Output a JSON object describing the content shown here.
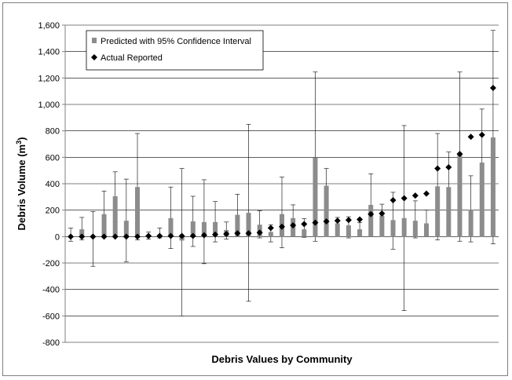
{
  "chart_data": {
    "type": "bar",
    "title": "",
    "xlabel": "Debris Values by Community",
    "ylabel_main": "Debris Volume (m",
    "ylabel_sup": "3",
    "ylabel_close": ")",
    "ylim": [
      -800,
      1600
    ],
    "yticks": [
      -800,
      -600,
      -400,
      -200,
      0,
      200,
      400,
      600,
      800,
      1000,
      1200,
      1400,
      1600
    ],
    "ytick_labels": [
      "-800",
      "-600",
      "-400",
      "-200",
      "0",
      "200",
      "400",
      "600",
      "800",
      "1,000",
      "1,200",
      "1,400",
      "1,600"
    ],
    "grid": true,
    "legend_position": "top-left",
    "series": [
      {
        "name": "Predicted with 95% Confidence Interval",
        "kind": "bar_with_error",
        "color": "#8c8c8c",
        "values": [
          5,
          55,
          0,
          170,
          305,
          120,
          375,
          0,
          0,
          140,
          -30,
          115,
          110,
          110,
          50,
          165,
          180,
          90,
          35,
          170,
          140,
          55,
          600,
          385,
          100,
          85,
          55,
          240,
          160,
          125,
          140,
          120,
          100,
          380,
          375,
          620,
          200,
          560,
          750
        ],
        "lower": [
          -35,
          -25,
          -225,
          0,
          110,
          -190,
          -25,
          -20,
          -10,
          -90,
          -600,
          -75,
          -205,
          -40,
          -20,
          0,
          -490,
          -10,
          -40,
          -85,
          0,
          -5,
          -35,
          250,
          55,
          -10,
          0,
          0,
          75,
          -95,
          -560,
          -10,
          0,
          -25,
          90,
          -35,
          -40,
          140,
          -55
        ],
        "upper": [
          65,
          145,
          190,
          345,
          490,
          435,
          780,
          35,
          65,
          375,
          515,
          305,
          430,
          265,
          110,
          320,
          850,
          195,
          90,
          450,
          240,
          135,
          1245,
          515,
          145,
          150,
          105,
          475,
          245,
          335,
          840,
          270,
          200,
          780,
          640,
          1245,
          460,
          965,
          1560
        ]
      },
      {
        "name": "Actual Reported",
        "kind": "marker",
        "color": "#000000",
        "values": [
          0,
          0,
          0,
          0,
          0,
          0,
          0,
          5,
          5,
          5,
          5,
          5,
          10,
          15,
          20,
          25,
          25,
          30,
          65,
          75,
          85,
          95,
          105,
          115,
          120,
          125,
          130,
          170,
          175,
          275,
          290,
          310,
          325,
          515,
          525,
          625,
          755,
          770,
          1125
        ]
      }
    ]
  }
}
